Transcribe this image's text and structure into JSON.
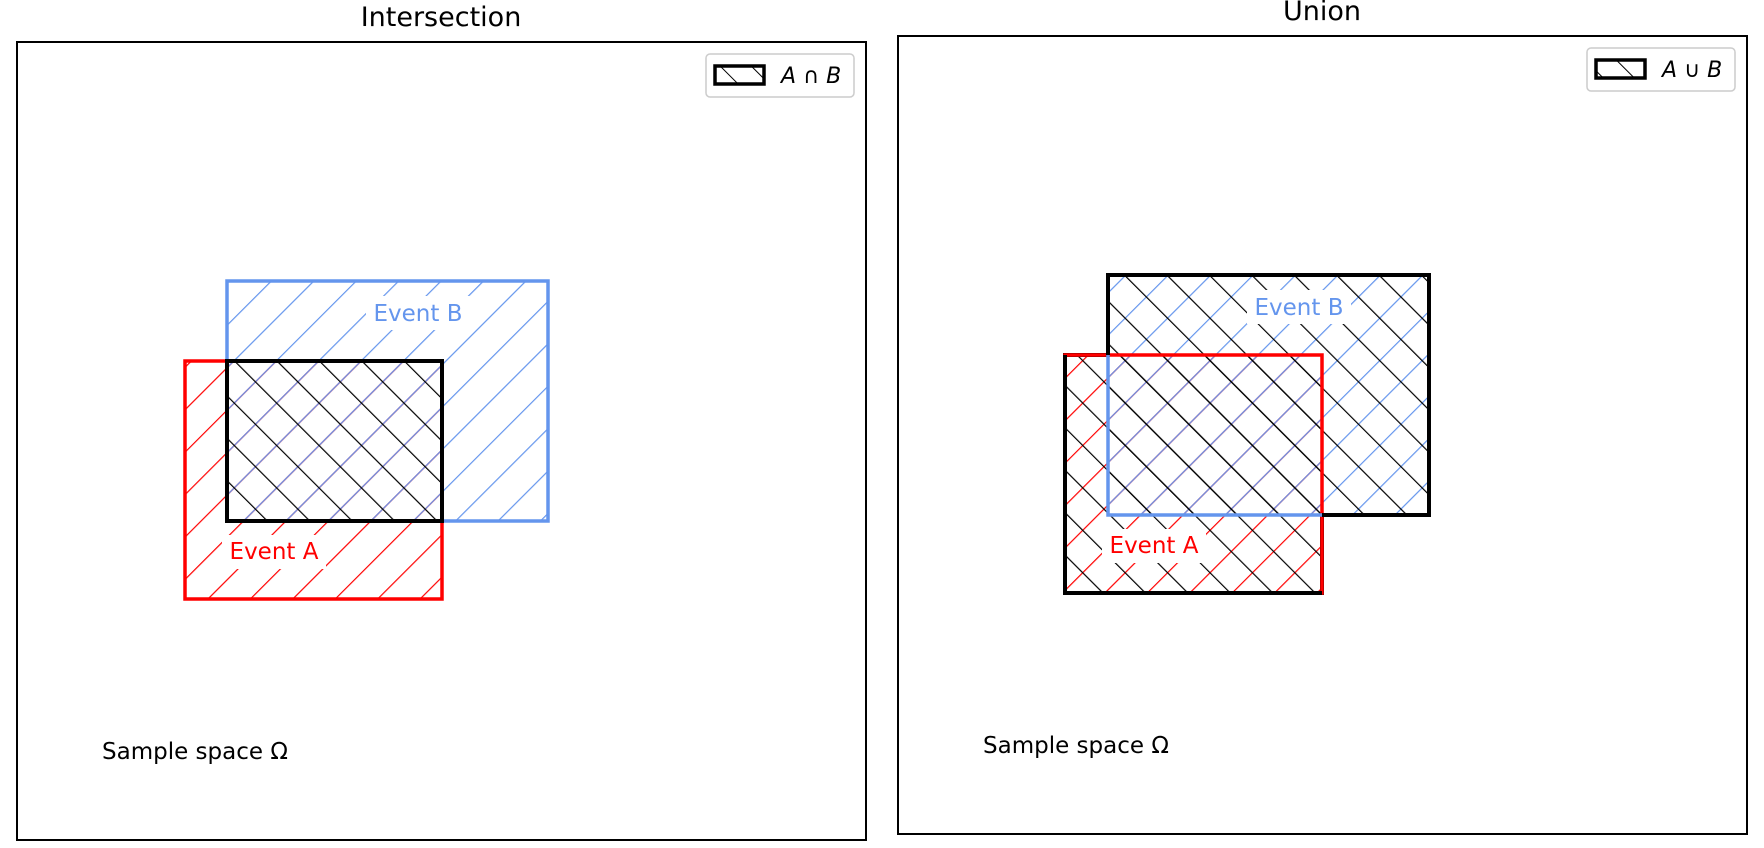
{
  "colors": {
    "event_a": "#ff0000",
    "event_b": "#6495ed",
    "highlight": "#000000",
    "frame": "#000000"
  },
  "panels": [
    {
      "title": "Intersection",
      "legend": "A ∩ B",
      "label_a": "Event A",
      "label_b": "Event B",
      "sample_space": "Sample space Ω",
      "operation": "intersection"
    },
    {
      "title": "Union",
      "legend": "A ∪ B",
      "label_a": "Event A",
      "label_b": "Event B",
      "sample_space": "Sample space Ω",
      "operation": "union"
    }
  ]
}
